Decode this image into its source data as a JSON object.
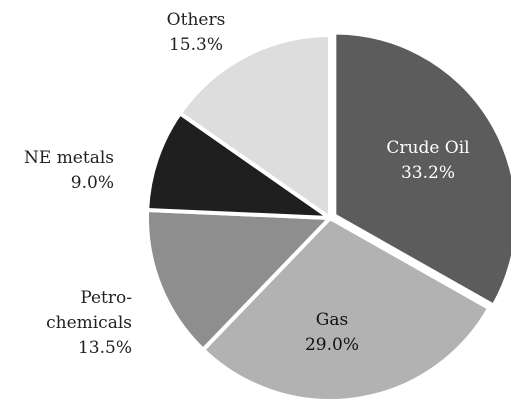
{
  "chart_data": {
    "type": "pie",
    "categories": [
      "Crude Oil",
      "Gas",
      "Petro-\nchemicals",
      "NE metals",
      "Others"
    ],
    "values": [
      33.2,
      29.0,
      13.5,
      9.0,
      15.3
    ],
    "value_labels": [
      "33.2%",
      "29.0%",
      "13.5%",
      "9.0%",
      "15.3%"
    ],
    "colors": [
      "#5c5c5c",
      "#b2b2b2",
      "#8e8e8e",
      "#1f1f1f",
      "#dddddd"
    ]
  }
}
